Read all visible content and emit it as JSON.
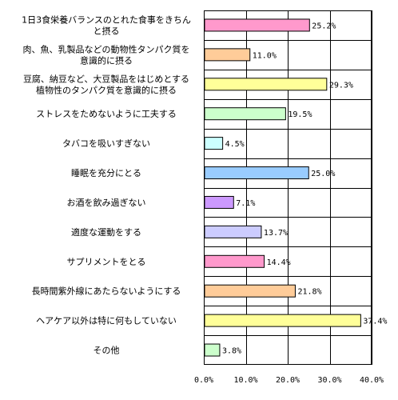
{
  "chart_data": {
    "type": "bar",
    "orientation": "horizontal",
    "categories": [
      [
        "1日3食栄養バランスのとれた食事をきちん",
        "と摂る"
      ],
      [
        "肉、魚、乳製品などの動物性タンパク質を",
        "意識的に摂る"
      ],
      [
        "豆腐、納豆など、大豆製品をはじめとする",
        "植物性のタンパク質を意識的に摂る"
      ],
      [
        "ストレスをためないように工夫する"
      ],
      [
        "タバコを吸いすぎない"
      ],
      [
        "睡眠を充分にとる"
      ],
      [
        "お酒を飲み過ぎない"
      ],
      [
        "適度な運動をする"
      ],
      [
        "サプリメントをとる"
      ],
      [
        "長時間紫外線にあたらないようにする"
      ],
      [
        "ヘアケア以外は特に何もしていない"
      ],
      [
        "その他"
      ]
    ],
    "values": [
      25.2,
      11.0,
      29.3,
      19.5,
      4.5,
      25.0,
      7.1,
      13.7,
      14.4,
      21.8,
      37.4,
      3.8
    ],
    "value_labels": [
      "25.2%",
      "11.0%",
      "29.3%",
      "19.5%",
      "4.5%",
      "25.0%",
      "7.1%",
      "13.7%",
      "14.4%",
      "21.8%",
      "37.4%",
      "3.8%"
    ],
    "colors": [
      "#ff99cc",
      "#ffcc99",
      "#ffff99",
      "#ccffcc",
      "#ccffff",
      "#99ccff",
      "#cc99ff",
      "#ccccff",
      "#ff99cc",
      "#ffcc99",
      "#ffff99",
      "#ccffcc"
    ],
    "xlim": [
      0,
      40
    ],
    "xticks": [
      0,
      10,
      20,
      30,
      40
    ],
    "xtick_labels": [
      "0.0%",
      "10.0%",
      "20.0%",
      "30.0%",
      "40.0%"
    ],
    "grid": true,
    "legend": "none"
  }
}
